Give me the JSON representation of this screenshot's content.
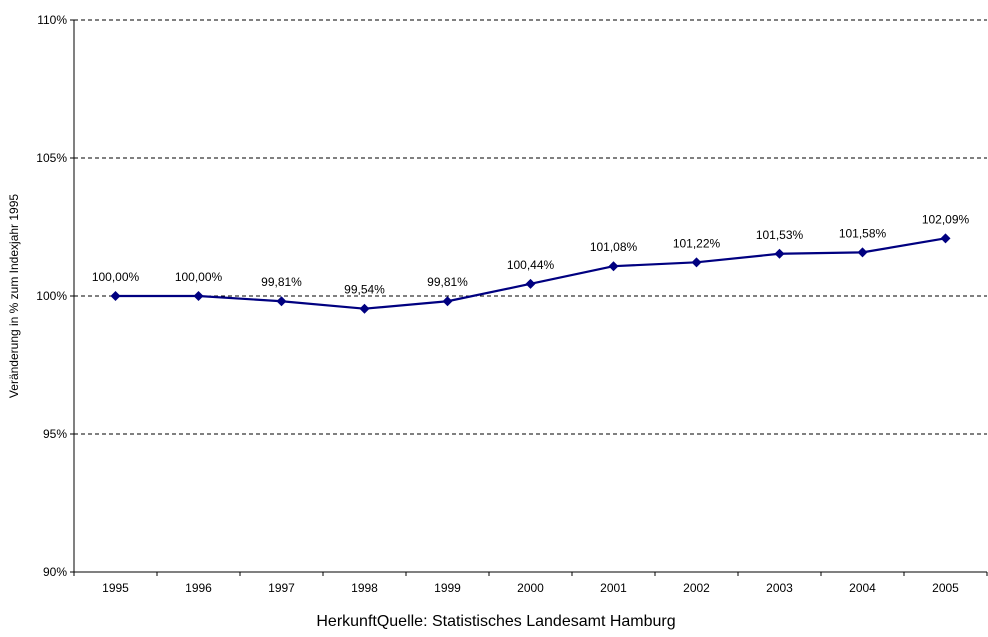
{
  "chart_data": {
    "type": "line",
    "categories": [
      "1995",
      "1996",
      "1997",
      "1998",
      "1999",
      "2000",
      "2001",
      "2002",
      "2003",
      "2004",
      "2005"
    ],
    "series": [
      {
        "values": [
          100.0,
          100.0,
          99.81,
          99.54,
          99.81,
          100.44,
          101.08,
          101.22,
          101.53,
          101.58,
          102.09
        ],
        "labels": [
          "100,00%",
          "100,00%",
          "99,81%",
          "99,54%",
          "99,81%",
          "100,44%",
          "101,08%",
          "101,22%",
          "101,53%",
          "101,58%",
          "102,09%"
        ]
      }
    ],
    "title": "",
    "xlabel": "HerkunftQuelle: Statistisches Landesamt Hamburg",
    "ylabel": "Veränderung in % zum Indexjahr 1995",
    "ylim": [
      90,
      110
    ],
    "yticks": [
      {
        "value": 90,
        "label": "90%"
      },
      {
        "value": 95,
        "label": "95%"
      },
      {
        "value": 100,
        "label": "100%"
      },
      {
        "value": 105,
        "label": "105%"
      },
      {
        "value": 110,
        "label": "110%"
      }
    ],
    "grid": "horizontal dashed",
    "legend": "none",
    "line_color": "#000080"
  }
}
